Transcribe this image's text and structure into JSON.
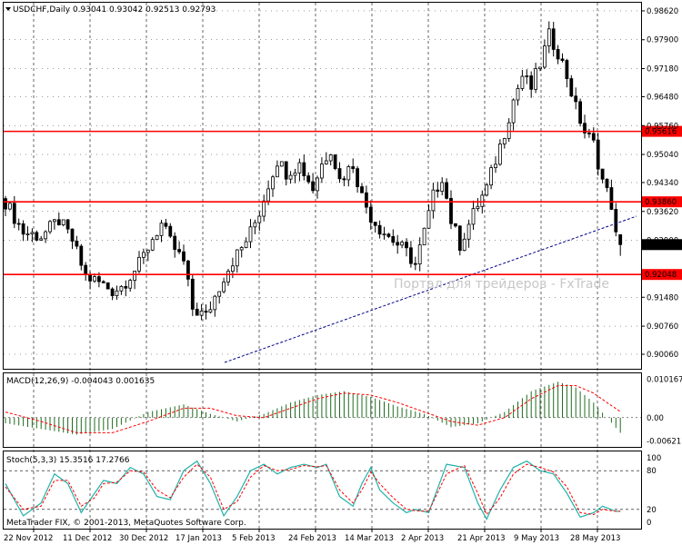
{
  "colors": {
    "background": "#ffffff",
    "candle": "#000000",
    "grid": "#000000",
    "level_line": "#ff0000",
    "level_label_bg": "#ff0000",
    "price_label_bg": "#000000",
    "trendline": "#00008b",
    "macd_hist": "#1f6b1f",
    "macd_signal": "#ff0000",
    "stoch_main": "#20b2aa",
    "stoch_signal": "#ff0000",
    "watermark": "#c7c7c7"
  },
  "main_pane": {
    "title": "USDCHF,Daily  0.93041 0.93042 0.92513 0.92793",
    "watermark": "Портал для трейдеров - FxTrade",
    "y_ticks": [
      "0.98620",
      "0.97900",
      "0.97180",
      "0.96480",
      "0.95760",
      "0.95040",
      "0.94340",
      "0.93620",
      "0.92900",
      "0.91480",
      "0.90760",
      "0.90060"
    ],
    "current_price": "0.92793",
    "levels": [
      {
        "label": "0.95616",
        "value": 0.95616
      },
      {
        "label": "0.93860",
        "value": 0.9386
      },
      {
        "label": "0.92048",
        "value": 0.92048
      }
    ],
    "trendline_icon": "dashed-trendline"
  },
  "macd_pane": {
    "title": "MACD(12,26,9) -0.004043 0.001635",
    "y_ticks": [
      "0.010167",
      "0.00",
      "-0.006217"
    ]
  },
  "stoch_pane": {
    "title": "Stoch(5,3,3) 15.3516 17.2766",
    "y_ticks": [
      "100",
      "80",
      "20",
      "0"
    ],
    "copyright": "MetaTrader FIX, © 2001-2013, MetaQuotes Software Corp."
  },
  "time_axis": {
    "labels": [
      "22 Nov 2012",
      "11 Dec 2012",
      "30 Dec 2012",
      "17 Jan 2013",
      "5 Feb 2013",
      "24 Feb 2013",
      "14 Mar 2013",
      "2 Apr 2013",
      "21 Apr 2013",
      "9 May 2013",
      "28 May 2013"
    ]
  },
  "chart_data": {
    "type": "candlestick",
    "symbol": "USDCHF",
    "timeframe": "Daily",
    "last_bar": {
      "open": 0.93041,
      "high": 0.93042,
      "low": 0.92513,
      "close": 0.92793
    },
    "ylim": [
      0.8972,
      0.988
    ],
    "close_path": [
      [
        0,
        0.9386
      ],
      [
        4,
        0.931
      ],
      [
        8,
        0.93
      ],
      [
        12,
        0.934
      ],
      [
        15,
        0.929
      ],
      [
        18,
        0.92
      ],
      [
        21,
        0.9185
      ],
      [
        24,
        0.9165
      ],
      [
        26,
        0.9175
      ],
      [
        30,
        0.923
      ],
      [
        33,
        0.9295
      ],
      [
        35,
        0.933
      ],
      [
        37,
        0.9285
      ],
      [
        40,
        0.9235
      ],
      [
        42,
        0.912
      ],
      [
        45,
        0.91
      ],
      [
        47,
        0.915
      ],
      [
        49,
        0.92
      ],
      [
        51,
        0.924
      ],
      [
        53,
        0.927
      ],
      [
        55,
        0.931
      ],
      [
        57,
        0.936
      ],
      [
        59,
        0.943
      ],
      [
        61,
        0.949
      ],
      [
        63,
        0.946
      ],
      [
        66,
        0.948
      ],
      [
        69,
        0.942
      ],
      [
        71,
        0.948
      ],
      [
        73,
        0.952
      ],
      [
        75,
        0.944
      ],
      [
        78,
        0.948
      ],
      [
        80,
        0.94
      ],
      [
        82,
        0.935
      ],
      [
        84,
        0.932
      ],
      [
        86,
        0.93
      ],
      [
        88,
        0.928
      ],
      [
        90,
        0.926
      ],
      [
        92,
        0.923
      ],
      [
        94,
        0.931
      ],
      [
        96,
        0.94
      ],
      [
        98,
        0.945
      ],
      [
        100,
        0.934
      ],
      [
        102,
        0.928
      ],
      [
        104,
        0.933
      ],
      [
        106,
        0.938
      ],
      [
        108,
        0.942
      ],
      [
        110,
        0.949
      ],
      [
        112,
        0.956
      ],
      [
        114,
        0.964
      ],
      [
        116,
        0.97
      ],
      [
        118,
        0.967
      ],
      [
        120,
        0.973
      ],
      [
        122,
        0.98
      ],
      [
        124,
        0.976
      ],
      [
        126,
        0.97
      ],
      [
        128,
        0.962
      ],
      [
        130,
        0.956
      ],
      [
        132,
        0.953
      ],
      [
        134,
        0.944
      ],
      [
        136,
        0.938
      ],
      [
        137,
        0.93
      ],
      [
        138,
        0.9279
      ]
    ],
    "macd": {
      "hist_path": [
        [
          0,
          -0.0015
        ],
        [
          8,
          -0.003
        ],
        [
          16,
          -0.0045
        ],
        [
          24,
          -0.003
        ],
        [
          32,
          0.0015
        ],
        [
          40,
          0.0035
        ],
        [
          46,
          0.001
        ],
        [
          52,
          -0.001
        ],
        [
          58,
          0.001
        ],
        [
          64,
          0.004
        ],
        [
          70,
          0.006
        ],
        [
          76,
          0.007
        ],
        [
          82,
          0.0055
        ],
        [
          88,
          0.003
        ],
        [
          94,
          0.001
        ],
        [
          100,
          -0.0025
        ],
        [
          106,
          -0.0015
        ],
        [
          112,
          0.0015
        ],
        [
          118,
          0.007
        ],
        [
          124,
          0.0095
        ],
        [
          128,
          0.008
        ],
        [
          132,
          0.004
        ],
        [
          135,
          0.0
        ],
        [
          138,
          -0.004
        ]
      ],
      "signal_path": [
        [
          0,
          0.0015
        ],
        [
          8,
          -0.001
        ],
        [
          16,
          -0.004
        ],
        [
          24,
          -0.004
        ],
        [
          32,
          -0.001
        ],
        [
          40,
          0.0025
        ],
        [
          46,
          0.0025
        ],
        [
          52,
          0.0005
        ],
        [
          58,
          0.0
        ],
        [
          64,
          0.0025
        ],
        [
          70,
          0.005
        ],
        [
          76,
          0.0065
        ],
        [
          82,
          0.006
        ],
        [
          88,
          0.004
        ],
        [
          94,
          0.0015
        ],
        [
          100,
          -0.001
        ],
        [
          106,
          -0.002
        ],
        [
          112,
          0.0
        ],
        [
          118,
          0.005
        ],
        [
          124,
          0.0085
        ],
        [
          128,
          0.0085
        ],
        [
          132,
          0.0065
        ],
        [
          135,
          0.004
        ],
        [
          138,
          0.0016
        ]
      ]
    },
    "stoch": {
      "main_path": [
        [
          0,
          60
        ],
        [
          4,
          10
        ],
        [
          8,
          30
        ],
        [
          11,
          75
        ],
        [
          14,
          60
        ],
        [
          17,
          15
        ],
        [
          20,
          45
        ],
        [
          22,
          65
        ],
        [
          25,
          60
        ],
        [
          28,
          85
        ],
        [
          31,
          75
        ],
        [
          34,
          40
        ],
        [
          37,
          35
        ],
        [
          40,
          80
        ],
        [
          43,
          95
        ],
        [
          46,
          60
        ],
        [
          49,
          10
        ],
        [
          52,
          40
        ],
        [
          55,
          80
        ],
        [
          58,
          90
        ],
        [
          61,
          75
        ],
        [
          64,
          85
        ],
        [
          67,
          90
        ],
        [
          70,
          85
        ],
        [
          72,
          90
        ],
        [
          75,
          40
        ],
        [
          78,
          25
        ],
        [
          80,
          60
        ],
        [
          82,
          85
        ],
        [
          84,
          50
        ],
        [
          87,
          30
        ],
        [
          90,
          15
        ],
        [
          92,
          20
        ],
        [
          95,
          15
        ],
        [
          99,
          90
        ],
        [
          103,
          85
        ],
        [
          106,
          30
        ],
        [
          108,
          5
        ],
        [
          111,
          50
        ],
        [
          114,
          85
        ],
        [
          117,
          95
        ],
        [
          120,
          80
        ],
        [
          123,
          75
        ],
        [
          126,
          45
        ],
        [
          129,
          8
        ],
        [
          132,
          15
        ],
        [
          134,
          25
        ],
        [
          137,
          17
        ]
      ],
      "signal_path": [
        [
          0,
          55
        ],
        [
          4,
          20
        ],
        [
          8,
          25
        ],
        [
          11,
          65
        ],
        [
          14,
          65
        ],
        [
          17,
          25
        ],
        [
          20,
          38
        ],
        [
          22,
          60
        ],
        [
          25,
          62
        ],
        [
          28,
          80
        ],
        [
          31,
          78
        ],
        [
          34,
          50
        ],
        [
          37,
          38
        ],
        [
          40,
          70
        ],
        [
          43,
          90
        ],
        [
          46,
          70
        ],
        [
          49,
          20
        ],
        [
          52,
          32
        ],
        [
          55,
          70
        ],
        [
          58,
          88
        ],
        [
          61,
          80
        ],
        [
          64,
          82
        ],
        [
          67,
          88
        ],
        [
          70,
          86
        ],
        [
          72,
          88
        ],
        [
          75,
          50
        ],
        [
          78,
          30
        ],
        [
          80,
          50
        ],
        [
          82,
          78
        ],
        [
          84,
          60
        ],
        [
          87,
          38
        ],
        [
          90,
          20
        ],
        [
          92,
          18
        ],
        [
          95,
          17
        ],
        [
          99,
          75
        ],
        [
          103,
          88
        ],
        [
          106,
          45
        ],
        [
          108,
          12
        ],
        [
          111,
          38
        ],
        [
          114,
          75
        ],
        [
          117,
          90
        ],
        [
          120,
          85
        ],
        [
          123,
          78
        ],
        [
          126,
          55
        ],
        [
          129,
          15
        ],
        [
          132,
          12
        ],
        [
          134,
          20
        ],
        [
          137,
          17
        ]
      ]
    }
  }
}
